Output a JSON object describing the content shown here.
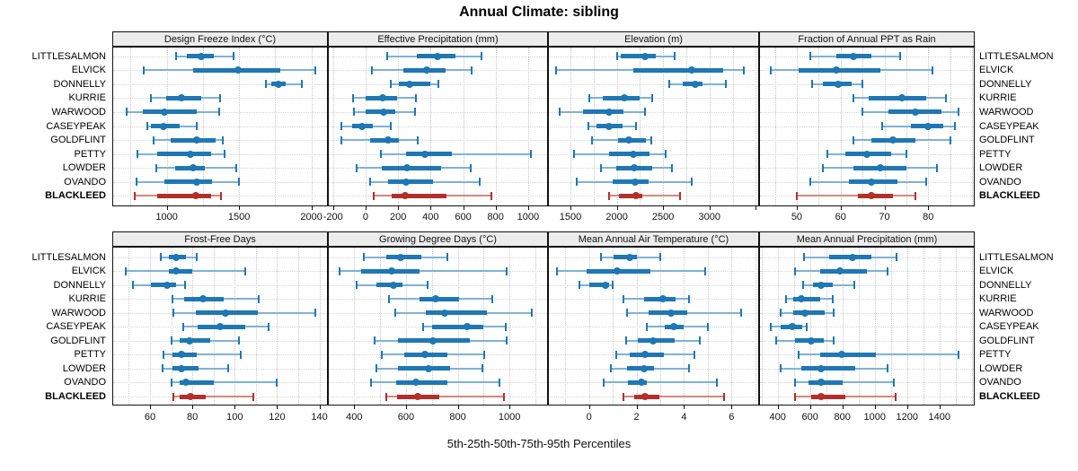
{
  "title": "Annual Climate: sibling",
  "caption": "5th-25th-50th-75th-95th Percentiles",
  "stations": [
    "LITTLESALMON",
    "ELVICK",
    "DONNELLY",
    "KURRIE",
    "WARWOOD",
    "CASEYPEAK",
    "GOLDFLINT",
    "PETTY",
    "LOWDER",
    "OVANDO",
    "BLACKLEED"
  ],
  "highlight_station": "BLACKLEED",
  "colors": {
    "blue": "#1f77b4",
    "blue_light": "#7fb2d6",
    "red": "#b0302a",
    "red_light": "#d5867e",
    "header_bg": "#ececec",
    "border": "#111111",
    "grid": "#c7c7c7"
  },
  "chart_data": [
    {
      "type": "interval",
      "title": "Design Freeze Index (°C)",
      "row": 0,
      "col": 0,
      "xlim": [
        623,
        2114
      ],
      "gridlines": [
        750,
        1000,
        1250,
        1500,
        1750,
        2000
      ],
      "ticks": [
        1000,
        1500,
        2000
      ],
      "tick_labels": [
        "1000",
        "1500",
        "2000"
      ],
      "extra_ticks": [],
      "percentile_labels": [
        "p5",
        "p25",
        "p50",
        "p75",
        "p95"
      ],
      "percentiles": [
        [
          1065,
          1140,
          1240,
          1325,
          1460
        ],
        [
          840,
          1180,
          1490,
          1785,
          2025
        ],
        [
          1685,
          1720,
          1770,
          1825,
          1935
        ],
        [
          890,
          995,
          1100,
          1235,
          1370
        ],
        [
          720,
          835,
          985,
          1205,
          1365
        ],
        [
          865,
          890,
          980,
          1090,
          1205
        ],
        [
          910,
          1025,
          1205,
          1335,
          1385
        ],
        [
          800,
          935,
          1165,
          1305,
          1400
        ],
        [
          930,
          1060,
          1180,
          1265,
          1480
        ],
        [
          790,
          985,
          1205,
          1315,
          1500
        ],
        [
          780,
          935,
          1200,
          1305,
          1375
        ]
      ]
    },
    {
      "type": "interval",
      "title": "Effective Precipitation (mm)",
      "row": 0,
      "col": 1,
      "xlim": [
        -232,
        1122
      ],
      "gridlines": [
        -200,
        0,
        200,
        400,
        600,
        800,
        1000
      ],
      "ticks": [
        -200,
        0,
        200,
        400,
        600,
        800,
        1000
      ],
      "tick_labels": [
        "-200",
        "0",
        "200",
        "400",
        "600",
        "800",
        "1000"
      ],
      "extra_ticks": [],
      "percentile_labels": [
        "p5",
        "p25",
        "p50",
        "p75",
        "p95"
      ],
      "percentiles": [
        [
          130,
          315,
          440,
          555,
          715
        ],
        [
          37,
          230,
          375,
          490,
          650
        ],
        [
          155,
          205,
          270,
          400,
          445
        ],
        [
          -75,
          0,
          105,
          195,
          310
        ],
        [
          -70,
          0,
          110,
          185,
          305
        ],
        [
          -150,
          -85,
          -20,
          45,
          155
        ],
        [
          -150,
          30,
          140,
          205,
          320
        ],
        [
          95,
          250,
          365,
          530,
          1015
        ],
        [
          -55,
          100,
          255,
          465,
          645
        ],
        [
          30,
          140,
          250,
          415,
          700
        ],
        [
          50,
          160,
          245,
          500,
          775
        ]
      ]
    },
    {
      "type": "interval",
      "title": "Elevation (m)",
      "row": 0,
      "col": 2,
      "xlim": [
        1257,
        3536
      ],
      "gridlines": [
        1500,
        1750,
        2000,
        2250,
        2500,
        2750,
        3000,
        3250,
        3500
      ],
      "ticks": [
        1500,
        2000,
        2500,
        3000
      ],
      "tick_labels": [
        "1500",
        "2000",
        "2500",
        "3000"
      ],
      "extra_ticks": [
        3500
      ],
      "percentile_labels": [
        "p5",
        "p25",
        "p50",
        "p75",
        "p95"
      ],
      "percentiles": [
        [
          2000,
          2040,
          2300,
          2425,
          2625
        ],
        [
          1345,
          2175,
          2805,
          3145,
          3370
        ],
        [
          2570,
          2715,
          2850,
          2925,
          3175
        ],
        [
          1705,
          1850,
          2085,
          2250,
          2385
        ],
        [
          1385,
          1640,
          1915,
          2075,
          2300
        ],
        [
          1690,
          1785,
          1915,
          2060,
          2210
        ],
        [
          1735,
          2010,
          2130,
          2315,
          2370
        ],
        [
          1535,
          1920,
          2175,
          2350,
          2525
        ],
        [
          1825,
          1990,
          2190,
          2380,
          2600
        ],
        [
          1570,
          1955,
          2200,
          2345,
          2805
        ],
        [
          1920,
          2025,
          2210,
          2280,
          2685
        ]
      ]
    },
    {
      "type": "interval",
      "title": "Fraction of Annual PPT as Rain",
      "row": 0,
      "col": 3,
      "xlim": [
        41.4,
        90.6
      ],
      "gridlines": [
        45,
        50,
        55,
        60,
        65,
        70,
        75,
        80,
        85,
        90
      ],
      "ticks": [
        50,
        60,
        70,
        80
      ],
      "tick_labels": [
        "50",
        "60",
        "70",
        "80"
      ],
      "extra_ticks": [],
      "percentile_labels": [
        "p5",
        "p25",
        "p50",
        "p75",
        "p95"
      ],
      "percentiles": [
        [
          53,
          59,
          63,
          67,
          73.5
        ],
        [
          44,
          50.5,
          59,
          69,
          81
        ],
        [
          53.5,
          56,
          59.5,
          62.5,
          65
        ],
        [
          63,
          66.5,
          74,
          79.5,
          84
        ],
        [
          65,
          71,
          77,
          83,
          87
        ],
        [
          69.5,
          76,
          80,
          83.5,
          86
        ],
        [
          63,
          67,
          72,
          77,
          85
        ],
        [
          57,
          61,
          66,
          71.5,
          75
        ],
        [
          56,
          63,
          69,
          75,
          82
        ],
        [
          53,
          62,
          67,
          73,
          79.5
        ],
        [
          50,
          64,
          67,
          72,
          77
        ]
      ]
    },
    {
      "type": "interval",
      "title": "Frost-Free Days",
      "row": 1,
      "col": 0,
      "xlim": [
        42.2,
        144
      ],
      "gridlines": [
        50,
        60,
        70,
        80,
        90,
        100,
        110,
        120,
        130,
        140
      ],
      "ticks": [
        60,
        80,
        100,
        120,
        140
      ],
      "tick_labels": [
        "60",
        "80",
        "100",
        "120",
        "140"
      ],
      "extra_ticks": [],
      "percentile_labels": [
        "p5",
        "p25",
        "p50",
        "p75",
        "p95"
      ],
      "percentiles": [
        [
          65,
          69,
          72.5,
          77,
          82
        ],
        [
          48.5,
          69,
          72.5,
          80,
          105
        ],
        [
          52,
          60.5,
          68,
          72.5,
          76.5
        ],
        [
          70.5,
          76,
          85,
          95,
          111.5
        ],
        [
          71,
          81.5,
          95.5,
          111,
          138
        ],
        [
          75.5,
          82.5,
          93,
          105,
          116
        ],
        [
          70,
          74,
          78.5,
          88.5,
          102
        ],
        [
          66.5,
          70.5,
          75,
          82,
          103
        ],
        [
          66,
          70.5,
          75,
          83,
          97
        ],
        [
          70,
          74,
          77,
          90,
          120
        ],
        [
          71,
          74,
          79,
          86.5,
          109
        ]
      ]
    },
    {
      "type": "interval",
      "title": "Growing Degree Days (°C)",
      "row": 1,
      "col": 1,
      "xlim": [
        298,
        1149
      ],
      "gridlines": [
        300,
        400,
        500,
        600,
        700,
        800,
        900,
        1000,
        1100
      ],
      "ticks": [
        400,
        600,
        800,
        1000
      ],
      "tick_labels": [
        "400",
        "600",
        "800",
        "1000"
      ],
      "extra_ticks": [],
      "percentile_labels": [
        "p5",
        "p25",
        "p50",
        "p75",
        "p95"
      ],
      "percentiles": [
        [
          438,
          523,
          580,
          659,
          759
        ],
        [
          342,
          428,
          543,
          653,
          990
        ],
        [
          410,
          487,
          550,
          588,
          682
        ],
        [
          535,
          653,
          715,
          806,
          933
        ],
        [
          558,
          676,
          751,
          913,
          1086
        ],
        [
          665,
          700,
          835,
          900,
          985
        ],
        [
          479,
          570,
          706,
          848,
          990
        ],
        [
          505,
          594,
          674,
          759,
          903
        ],
        [
          485,
          568,
          686,
          771,
          895
        ],
        [
          464,
          561,
          639,
          759,
          963
        ],
        [
          525,
          564,
          645,
          730,
          980
        ]
      ]
    },
    {
      "type": "interval",
      "title": "Mean Annual Air Temperature (°C)",
      "row": 1,
      "col": 2,
      "xlim": [
        -1.73,
        7.16
      ],
      "gridlines": [
        -1,
        0,
        1,
        2,
        3,
        4,
        5,
        6,
        7
      ],
      "ticks": [
        0,
        2,
        4,
        6
      ],
      "tick_labels": [
        "0",
        "2",
        "4",
        "6"
      ],
      "extra_ticks": [],
      "percentile_labels": [
        "p5",
        "p25",
        "p50",
        "p75",
        "p95"
      ],
      "percentiles": [
        [
          0.5,
          1.05,
          1.7,
          2.0,
          3.0
        ],
        [
          -1.35,
          -0.1,
          1.2,
          2.6,
          4.9
        ],
        [
          -0.4,
          0.0,
          0.68,
          0.85,
          1.0
        ],
        [
          1.45,
          2.3,
          3.1,
          3.65,
          4.2
        ],
        [
          1.6,
          2.5,
          3.45,
          4.15,
          6.4
        ],
        [
          2.45,
          3.2,
          3.55,
          4.0,
          5.0
        ],
        [
          1.55,
          2.05,
          2.7,
          3.6,
          4.65
        ],
        [
          1.15,
          1.7,
          2.35,
          3.15,
          4.45
        ],
        [
          0.9,
          1.6,
          2.3,
          2.75,
          4.2
        ],
        [
          0.6,
          1.65,
          2.2,
          2.45,
          5.4
        ],
        [
          1.45,
          1.9,
          2.35,
          2.95,
          5.7
        ]
      ]
    },
    {
      "type": "interval",
      "title": "Mean Annual Precipitation (mm)",
      "row": 1,
      "col": 3,
      "xlim": [
        285,
        1618
      ],
      "gridlines": [
        300,
        400,
        500,
        600,
        700,
        800,
        900,
        1000,
        1100,
        1200,
        1300,
        1400,
        1500,
        1600
      ],
      "ticks": [
        400,
        600,
        800,
        1000,
        1200,
        1400
      ],
      "tick_labels": [
        "400",
        "600",
        "800",
        "1000",
        "1200",
        "1400"
      ],
      "extra_ticks": [],
      "percentile_labels": [
        "p5",
        "p25",
        "p50",
        "p75",
        "p95"
      ],
      "percentiles": [
        [
          565,
          720,
          865,
          980,
          1135
        ],
        [
          505,
          665,
          785,
          950,
          1080
        ],
        [
          555,
          620,
          670,
          740,
          875
        ],
        [
          450,
          495,
          545,
          665,
          740
        ],
        [
          420,
          495,
          570,
          690,
          745
        ],
        [
          355,
          420,
          490,
          550,
          580
        ],
        [
          390,
          505,
          605,
          685,
          745
        ],
        [
          530,
          665,
          795,
          1005,
          1520
        ],
        [
          420,
          545,
          670,
          880,
          1080
        ],
        [
          505,
          590,
          670,
          800,
          1120
        ],
        [
          505,
          605,
          670,
          820,
          1130
        ]
      ]
    }
  ]
}
